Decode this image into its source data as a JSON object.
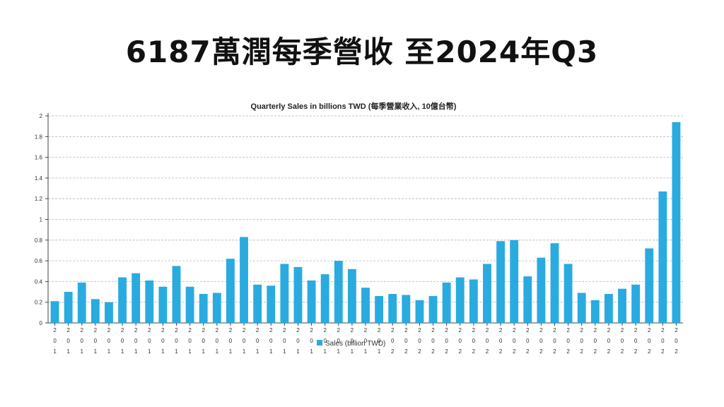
{
  "headline": "6187萬潤每季營收 至2024年Q3",
  "chart_data": {
    "type": "bar",
    "title": "Quarterly Sales in billions TWD (每季營業收入, 10億台幣)",
    "color": "#29abe0",
    "ylim": [
      0,
      2
    ],
    "yticks": [
      "0",
      "0.2",
      "0.4",
      "0.6",
      "0.8",
      "1",
      "1.2",
      "1.4",
      "1.6",
      "1.8",
      "2"
    ],
    "grid": true,
    "legend_position": "bottom-center",
    "series": [
      {
        "name": "Sales (billion TWD)",
        "values": [
          0.21,
          0.3,
          0.39,
          0.23,
          0.2,
          0.44,
          0.48,
          0.41,
          0.35,
          0.55,
          0.35,
          0.28,
          0.29,
          0.62,
          0.83,
          0.37,
          0.36,
          0.57,
          0.54,
          0.41,
          0.47,
          0.6,
          0.52,
          0.34,
          0.26,
          0.28,
          0.27,
          0.22,
          0.26,
          0.39,
          0.44,
          0.42,
          0.57,
          0.79,
          0.8,
          0.45,
          0.63,
          0.77,
          0.57,
          0.29,
          0.22,
          0.28,
          0.33,
          0.37,
          0.72,
          1.27,
          1.94
        ]
      }
    ],
    "categories": [
      "201",
      "201",
      "201",
      "201",
      "201",
      "201",
      "201",
      "201",
      "201",
      "201",
      "201",
      "201",
      "201",
      "201",
      "201",
      "201",
      "201",
      "201",
      "201",
      "201",
      "201",
      "201",
      "201",
      "201",
      "201",
      "202",
      "202",
      "202",
      "202",
      "202",
      "202",
      "202",
      "202",
      "202",
      "202",
      "202",
      "202",
      "202",
      "202",
      "202",
      "202",
      "202",
      "202",
      "202",
      "202",
      "202",
      "202"
    ]
  }
}
